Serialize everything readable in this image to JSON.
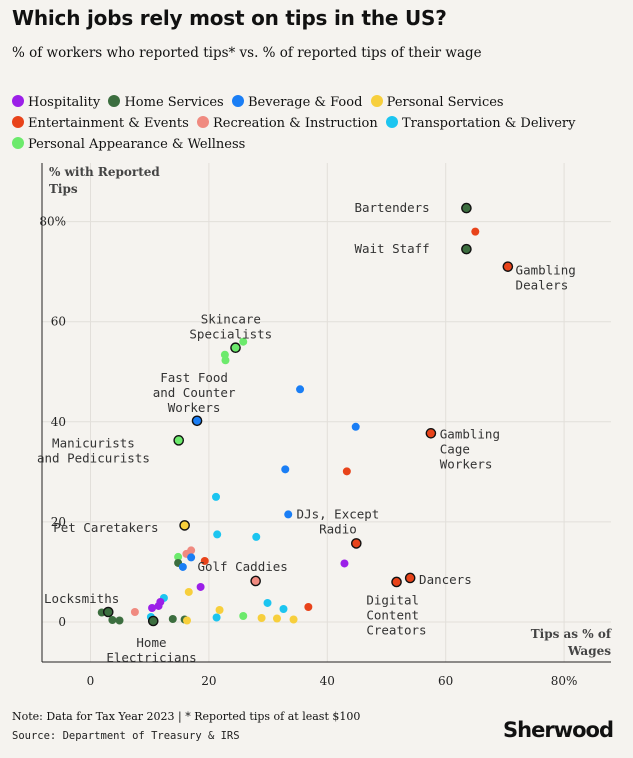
{
  "title": "Which jobs rely most on tips in the US?",
  "subtitle": "% of workers who reported tips* vs. % of reported tips of their wage",
  "footnote": "Note: Data for Tax Year 2023 | * Reported tips of at least $100",
  "source": "Source: Department of Treasury & IRS",
  "brand": "Sherwood",
  "legend": [
    {
      "name": "Hospitality",
      "color": "#9b1fe8"
    },
    {
      "name": "Home Services",
      "color": "#3c6e3f"
    },
    {
      "name": "Beverage & Food",
      "color": "#1a7ef5"
    },
    {
      "name": "Personal Services",
      "color": "#f7cf3c"
    },
    {
      "name": "Entertainment & Events",
      "color": "#e8431a"
    },
    {
      "name": "Recreation & Instruction",
      "color": "#f08a80"
    },
    {
      "name": "Transportation & Delivery",
      "color": "#1cc5f0"
    },
    {
      "name": "Personal Appearance & Wellness",
      "color": "#6cea6c"
    }
  ],
  "chart_data": {
    "type": "scatter",
    "xlabel": "Tips as % of Wages",
    "ylabel": "% with Reported Tips",
    "xlim": [
      -8,
      88
    ],
    "ylim": [
      -8,
      92
    ],
    "xticks": [
      {
        "v": 0,
        "label": "0"
      },
      {
        "v": 20,
        "label": "20"
      },
      {
        "v": 40,
        "label": "40"
      },
      {
        "v": 60,
        "label": "60"
      },
      {
        "v": 80,
        "label": "80%"
      }
    ],
    "yticks": [
      {
        "v": 0,
        "label": "0"
      },
      {
        "v": 20,
        "label": "20"
      },
      {
        "v": 40,
        "label": "40"
      },
      {
        "v": 60,
        "label": "60"
      },
      {
        "v": 80,
        "label": "80%"
      }
    ],
    "points": [
      {
        "x": 63.5,
        "y": 82.7,
        "cat": 1,
        "hl": true
      },
      {
        "x": 65,
        "y": 78,
        "cat": 4
      },
      {
        "x": 63.5,
        "y": 74.5,
        "cat": 1,
        "hl": true
      },
      {
        "x": 70.5,
        "y": 71,
        "cat": 4,
        "hl": true
      },
      {
        "x": 25.8,
        "y": 56,
        "cat": 7
      },
      {
        "x": 24.5,
        "y": 54.8,
        "cat": 7,
        "hl": true
      },
      {
        "x": 22.7,
        "y": 53.4,
        "cat": 7
      },
      {
        "x": 22.8,
        "y": 52.3,
        "cat": 7
      },
      {
        "x": 35.4,
        "y": 46.5,
        "cat": 2
      },
      {
        "x": 18,
        "y": 40.2,
        "cat": 2,
        "hl": true
      },
      {
        "x": 44.8,
        "y": 39,
        "cat": 2
      },
      {
        "x": 57.5,
        "y": 37.7,
        "cat": 4,
        "hl": true
      },
      {
        "x": 14.9,
        "y": 36.3,
        "cat": 7,
        "hl": true
      },
      {
        "x": 32.9,
        "y": 30.5,
        "cat": 2
      },
      {
        "x": 43.3,
        "y": 30.1,
        "cat": 4
      },
      {
        "x": 21.2,
        "y": 25,
        "cat": 6
      },
      {
        "x": 33.4,
        "y": 21.5,
        "cat": 2
      },
      {
        "x": 15.9,
        "y": 19.3,
        "cat": 3,
        "hl": true
      },
      {
        "x": 21.4,
        "y": 17.5,
        "cat": 6
      },
      {
        "x": 28,
        "y": 17,
        "cat": 6
      },
      {
        "x": 44.9,
        "y": 15.7,
        "cat": 4,
        "hl": true
      },
      {
        "x": 17,
        "y": 14.3,
        "cat": 5
      },
      {
        "x": 16.2,
        "y": 13.6,
        "cat": 5
      },
      {
        "x": 14.8,
        "y": 13,
        "cat": 7
      },
      {
        "x": 17,
        "y": 12.9,
        "cat": 2
      },
      {
        "x": 19.3,
        "y": 12.2,
        "cat": 4
      },
      {
        "x": 14.8,
        "y": 11.8,
        "cat": 1
      },
      {
        "x": 15.6,
        "y": 11,
        "cat": 2
      },
      {
        "x": 42.9,
        "y": 11.7,
        "cat": 0
      },
      {
        "x": 27.9,
        "y": 8.2,
        "cat": 5,
        "hl": true
      },
      {
        "x": 54,
        "y": 8.8,
        "cat": 4,
        "hl": true
      },
      {
        "x": 51.7,
        "y": 8,
        "cat": 4,
        "hl": true
      },
      {
        "x": 18.6,
        "y": 7,
        "cat": 0
      },
      {
        "x": 16.6,
        "y": 6,
        "cat": 3
      },
      {
        "x": 12.4,
        "y": 4.8,
        "cat": 6
      },
      {
        "x": 11.8,
        "y": 4,
        "cat": 0
      },
      {
        "x": 11.5,
        "y": 3.2,
        "cat": 0
      },
      {
        "x": 10.4,
        "y": 2.8,
        "cat": 0
      },
      {
        "x": 7.5,
        "y": 2,
        "cat": 5
      },
      {
        "x": 1.9,
        "y": 1.9,
        "cat": 1
      },
      {
        "x": 3,
        "y": 2,
        "cat": 1,
        "hl": true
      },
      {
        "x": 29.9,
        "y": 3.8,
        "cat": 6
      },
      {
        "x": 36.8,
        "y": 3,
        "cat": 4
      },
      {
        "x": 32.6,
        "y": 2.6,
        "cat": 6
      },
      {
        "x": 21.8,
        "y": 2.4,
        "cat": 3
      },
      {
        "x": 3.7,
        "y": 0.4,
        "cat": 1
      },
      {
        "x": 4.9,
        "y": 0.3,
        "cat": 1
      },
      {
        "x": 10.2,
        "y": 1,
        "cat": 6
      },
      {
        "x": 13.9,
        "y": 0.6,
        "cat": 1
      },
      {
        "x": 15.9,
        "y": 0.5,
        "cat": 1
      },
      {
        "x": 16.3,
        "y": 0.3,
        "cat": 3
      },
      {
        "x": 10.6,
        "y": 0.2,
        "cat": 1,
        "hl": true
      },
      {
        "x": 21.3,
        "y": 0.9,
        "cat": 6
      },
      {
        "x": 25.8,
        "y": 1.2,
        "cat": 7
      },
      {
        "x": 28.9,
        "y": 0.8,
        "cat": 3
      },
      {
        "x": 31.5,
        "y": 0.7,
        "cat": 3
      },
      {
        "x": 34.3,
        "y": 0.5,
        "cat": 3
      }
    ],
    "annotations": [
      {
        "lines": [
          "Bartenders"
        ],
        "x": 57.3,
        "y": 82.7,
        "anchor": "end"
      },
      {
        "lines": [
          "Wait Staff"
        ],
        "x": 57.3,
        "y": 74.5,
        "anchor": "end"
      },
      {
        "lines": [
          "Gambling",
          "Dealers"
        ],
        "x": 71.8,
        "y": 70.2,
        "anchor": "start"
      },
      {
        "lines": [
          "Skincare",
          "Specialists"
        ],
        "x": 23.7,
        "y": 60.4,
        "anchor": "middle"
      },
      {
        "lines": [
          "Fast Food",
          "and Counter",
          "Workers"
        ],
        "x": 17.5,
        "y": 48.8,
        "anchor": "middle"
      },
      {
        "lines": [
          "Manicurists",
          "and Pedicurists"
        ],
        "x": 0.5,
        "y": 35.7,
        "anchor": "middle"
      },
      {
        "lines": [
          "Gambling",
          "Cage",
          "Workers"
        ],
        "x": 59,
        "y": 37.5,
        "anchor": "start"
      },
      {
        "lines": [
          "Pet Caretakers"
        ],
        "x": 2.6,
        "y": 18.8,
        "anchor": "middle"
      },
      {
        "lines": [
          "DJs, Except",
          "Radio"
        ],
        "x": 41.8,
        "y": 21.5,
        "anchor": "middle"
      },
      {
        "lines": [
          "Golf Caddies"
        ],
        "x": 25.7,
        "y": 11,
        "anchor": "middle"
      },
      {
        "lines": [
          "Dancers"
        ],
        "x": 55.5,
        "y": 8.4,
        "anchor": "start"
      },
      {
        "lines": [
          "Digital",
          "Content",
          "Creators"
        ],
        "x": 46.6,
        "y": 4.3,
        "anchor": "start"
      },
      {
        "lines": [
          "Locksmiths"
        ],
        "x": -1.5,
        "y": 4.6,
        "anchor": "middle"
      },
      {
        "lines": [
          "Home",
          "Electricians"
        ],
        "x": 10.3,
        "y": -4.2,
        "anchor": "middle"
      }
    ]
  }
}
